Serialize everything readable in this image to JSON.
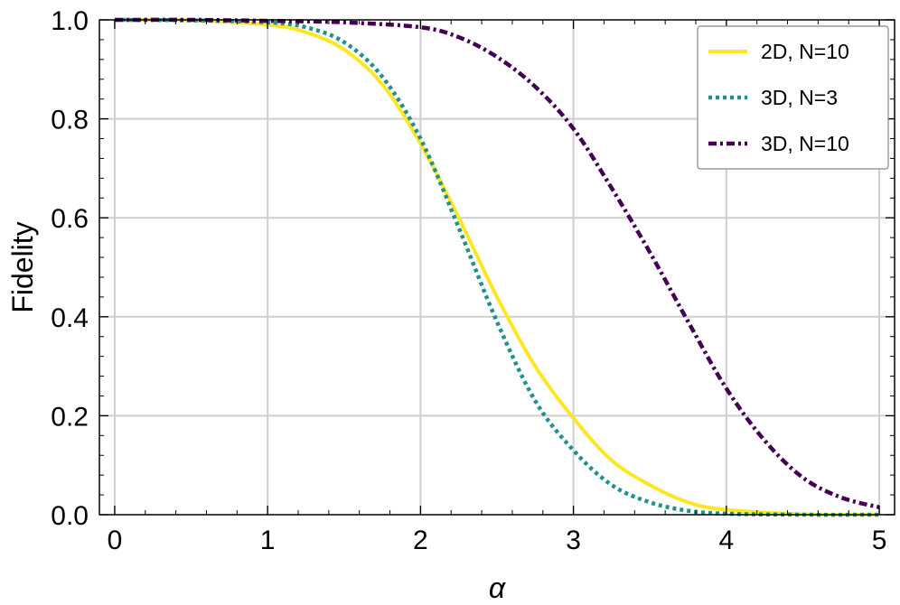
{
  "chart_data": {
    "type": "line",
    "title": "",
    "xlabel": "α",
    "ylabel": "Fidelity",
    "xlim": [
      -0.1,
      5.1
    ],
    "ylim": [
      0,
      1
    ],
    "xticks": [
      "0",
      "1",
      "2",
      "3",
      "4",
      "5"
    ],
    "yticks": [
      "0.0",
      "0.2",
      "0.4",
      "0.6",
      "0.8",
      "1.0"
    ],
    "grid": true,
    "legend_position": "top-right",
    "series": [
      {
        "name": "2D, N=10",
        "color": "#fde725",
        "style": "solid",
        "x": [
          0,
          0.5,
          1.0,
          1.25,
          1.5,
          1.75,
          2.0,
          2.25,
          2.5,
          2.75,
          3.0,
          3.25,
          3.5,
          3.75,
          4.0,
          4.5,
          5.0
        ],
        "y": [
          1.0,
          0.999,
          0.99,
          0.975,
          0.94,
          0.87,
          0.75,
          0.6,
          0.44,
          0.3,
          0.195,
          0.11,
          0.06,
          0.025,
          0.01,
          0.001,
          0.0
        ]
      },
      {
        "name": "3D, N=3",
        "color": "#21918c",
        "style": "dotted",
        "x": [
          0,
          0.5,
          1.0,
          1.25,
          1.5,
          1.75,
          2.0,
          2.25,
          2.5,
          2.75,
          3.0,
          3.25,
          3.5,
          3.75,
          4.0,
          4.5,
          5.0
        ],
        "y": [
          1.0,
          0.999,
          0.995,
          0.985,
          0.955,
          0.885,
          0.76,
          0.58,
          0.39,
          0.23,
          0.13,
          0.06,
          0.025,
          0.008,
          0.002,
          0.0,
          0.0
        ]
      },
      {
        "name": "3D, N=10",
        "color": "#440154",
        "style": "dashdot",
        "x": [
          0,
          0.5,
          1.0,
          1.5,
          2.0,
          2.25,
          2.5,
          2.75,
          3.0,
          3.25,
          3.5,
          3.75,
          4.0,
          4.25,
          4.5,
          4.75,
          5.0
        ],
        "y": [
          1.0,
          1.0,
          0.998,
          0.995,
          0.985,
          0.965,
          0.925,
          0.865,
          0.78,
          0.66,
          0.53,
          0.39,
          0.255,
          0.15,
          0.075,
          0.035,
          0.015
        ]
      }
    ]
  }
}
